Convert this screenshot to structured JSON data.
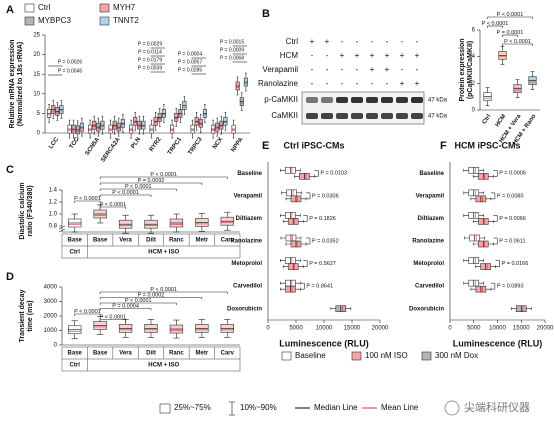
{
  "chart_data": [
    {
      "type": "box",
      "label": "A",
      "ylabel": [
        "Relative mRNA expression",
        "(Normalized to 18s rRNA)"
      ],
      "categories": [
        "LCC",
        "TCC",
        "SCN5A",
        "SERCA2A",
        "PLN",
        "RYR2",
        "TRPC1",
        "TRPC3",
        "NCX",
        "NPPA"
      ],
      "series": [
        {
          "name": "Ctrl",
          "color": "#ffffff",
          "values": [
            5,
            1,
            1,
            1,
            1,
            1,
            1,
            1,
            1,
            1
          ]
        },
        {
          "name": "MYH7",
          "color": "#f4a3a8",
          "values": [
            6,
            1,
            2,
            2,
            3,
            3,
            4,
            3,
            1.5,
            12
          ]
        },
        {
          "name": "MYBPC3",
          "color": "#b4b4b4",
          "values": [
            5.5,
            0.8,
            1.5,
            1.5,
            2,
            4,
            5,
            2.5,
            2,
            8
          ]
        },
        {
          "name": "TNNT2",
          "color": "#a9d6e8",
          "values": [
            6,
            1.5,
            2,
            2.5,
            2,
            5,
            7,
            5,
            3,
            13
          ]
        }
      ],
      "ylim": [
        0,
        25
      ],
      "yticks": [
        0,
        5,
        10,
        15,
        20,
        25
      ],
      "annotations": [
        "P = 0.0026",
        "P = 0.0045",
        "P = 0.0029",
        "P = 0.0114",
        "P = 0.0179",
        "P = 0.0039",
        "P = 0.0004",
        "P = 0.0057",
        "P = 0.0285",
        "P = 0.0015",
        "P = 0.0009",
        "P = 0.0068"
      ]
    },
    {
      "type": "box",
      "label": "B",
      "ylabel": [
        "Protein expression",
        "(pCaMKII/CaMKII)"
      ],
      "categories": [
        "Ctrl",
        "HCM",
        "HCM + Vera",
        "HCM + Rano"
      ],
      "values": [
        1,
        4.1,
        1.6,
        2.2
      ],
      "colors": [
        "#ffffff",
        "#f5d6b8",
        "#f4b6c2",
        "#a8d0e6"
      ],
      "ylim": [
        0,
        6
      ],
      "yticks": [
        0,
        2,
        4,
        6
      ],
      "annotations": [
        "P < 0.0001",
        "P < 0.0001",
        "P = 0.0001",
        "P < 0.0001"
      ]
    },
    {
      "type": "box",
      "label": "C",
      "ylabel": [
        "Diastolic calcium",
        "ratio (F340/380)"
      ],
      "categories": [
        "Base",
        "Base",
        "Vera",
        "Dilt",
        "Ranc",
        "Metr",
        "Carv"
      ],
      "groups": [
        "Ctrl",
        "HCM + ISO"
      ],
      "values": [
        0.85,
        1.0,
        0.83,
        0.83,
        0.85,
        0.86,
        0.88
      ],
      "colors": [
        "#ffffff",
        "#f9d0d0",
        "#f9d0d0",
        "#f9d0d0",
        "#f9d0d0",
        "#f9d0d0",
        "#f9d0d0"
      ],
      "ylim": [
        0.7,
        1.4
      ],
      "yticks": [
        {
          "value": 0.8,
          "label": "0.8"
        },
        {
          "value": 1,
          "label": "1.0"
        },
        {
          "value": 1.2,
          "label": "1.2"
        },
        {
          "value": 1.4,
          "label": "1.4"
        }
      ],
      "annotations": [
        "P < 0.0001",
        "P = 0.0092",
        "P < 0.0001",
        "P < 0.0001",
        "P < 0.0001",
        "P < 0.0001"
      ]
    },
    {
      "type": "box",
      "label": "D",
      "ylabel": [
        "Transient decay",
        "time (ms)"
      ],
      "categories": [
        "Base",
        "Base",
        "Vera",
        "Dilt",
        "Ranc",
        "Metr",
        "Carv"
      ],
      "groups": [
        "Ctrl",
        "HCM + ISO"
      ],
      "values": [
        1050,
        1350,
        1150,
        1150,
        1100,
        1150,
        1150
      ],
      "colors": [
        "#ffffff",
        "#f9d0d0",
        "#f9d0d0",
        "#f9d0d0",
        "#f9d0d0",
        "#f9d0d0",
        "#f9d0d0"
      ],
      "ylim": [
        0,
        4000
      ],
      "yticks": [
        0,
        1000,
        2000,
        3000,
        4000
      ],
      "annotations": [
        "P < 0.0001",
        "P = 0.0002",
        "P < 0.0001",
        "P = 0.0004",
        "P < 0.0001",
        "P < 0.0001"
      ]
    },
    {
      "type": "hbox",
      "label": "E",
      "title": "Ctrl iPSC-CMs",
      "xlabel": "Luminescence (RLU)",
      "categories": [
        "Baseline",
        "Verapamil",
        "Diltiazem",
        "Ranolazine",
        "Metoprolol",
        "Carvedilol",
        "Doxorubicin"
      ],
      "series": [
        {
          "name": "Baseline",
          "color": "#ffffff",
          "values": [
            4000,
            4200,
            4000,
            4100,
            4000,
            4000,
            null
          ]
        },
        {
          "name": "100 nM ISO",
          "color": "#f4a3a8",
          "values": [
            6500,
            5000,
            4500,
            5000,
            4500,
            4000,
            null
          ]
        },
        {
          "name": "300 nM Dox",
          "color": "#b4b4b4",
          "values": [
            null,
            null,
            null,
            null,
            null,
            null,
            13000
          ]
        }
      ],
      "xlim": [
        0,
        20000
      ],
      "xticks": [
        0,
        5000,
        10000,
        15000,
        20000
      ],
      "annotations": [
        "P = 0.0103",
        "P = 0.0306",
        "P = 0.1826",
        "P = 0.0352",
        "P = 0.5627",
        "P = 0.8641"
      ]
    },
    {
      "type": "hbox",
      "label": "F",
      "title": "HCM iPSC-CMs",
      "xlabel": "Luminescence (RLU)",
      "categories": [
        "Baseline",
        "Verapamil",
        "Diltiazem",
        "Ranolazine",
        "Metoprolol",
        "Carvedilol",
        "Doxorubicin"
      ],
      "series": [
        {
          "color": "#ffffff",
          "values": [
            5000,
            5000,
            5000,
            5200,
            5000,
            5000,
            null
          ]
        },
        {
          "color": "#f4a3a8",
          "values": [
            7000,
            6500,
            7000,
            7000,
            7500,
            6500,
            null
          ]
        },
        {
          "color": "#b4b4b4",
          "values": [
            null,
            null,
            null,
            null,
            null,
            null,
            15000
          ]
        }
      ],
      "xlim": [
        0,
        20000
      ],
      "xticks": [
        0,
        5000,
        10000,
        15000,
        20000
      ],
      "annotations": [
        "P = 0.0006",
        "P = 0.0080",
        "P = 0.0066",
        "P = 0.0611",
        "P = 0.0166",
        "P = 0.0893"
      ]
    }
  ],
  "blot": {
    "rows": [
      {
        "name": "Ctrl",
        "marks": [
          "+",
          "+",
          "-",
          "-",
          "-",
          "-",
          "-",
          "-"
        ]
      },
      {
        "name": "HCM",
        "marks": [
          "-",
          "-",
          "+",
          "+",
          "+",
          "+",
          "+",
          "+"
        ]
      },
      {
        "name": "Verapamil",
        "marks": [
          "-",
          "-",
          "-",
          "-",
          "+",
          "+",
          "-",
          "-"
        ]
      },
      {
        "name": "Ranolazine",
        "marks": [
          "-",
          "-",
          "-",
          "-",
          "-",
          "-",
          "+",
          "+"
        ]
      }
    ],
    "bands": [
      {
        "name": "p-CaMKII",
        "size": "47 kDa"
      },
      {
        "name": "CaMKII",
        "size": "47 kDa"
      }
    ]
  },
  "legend": {
    "box": "25%~75%",
    "whisker": "10%~90%",
    "median": "Median Line",
    "mean": "Mean Line"
  },
  "watermark": "尖端科研仪器"
}
